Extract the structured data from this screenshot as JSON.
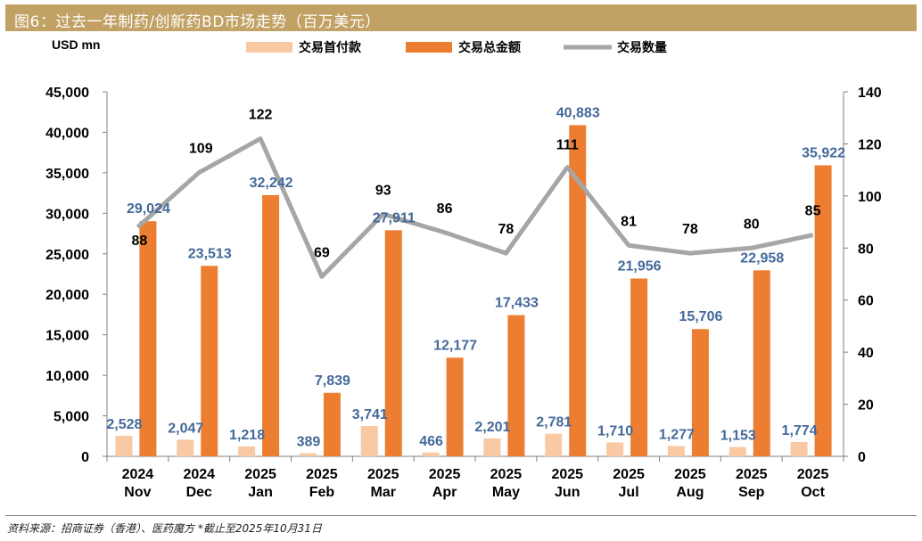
{
  "header": {
    "title": "图6：过去一年制药/创新药BD市场走势（百万美元）"
  },
  "footer": {
    "source": "资料来源：招商证券（香港）、医药魔方 *截止至2025年10月31日"
  },
  "colors": {
    "title_bg": "#C2A165",
    "upfront_bar": "#F8C9A3",
    "total_bar": "#ED7D31",
    "count_line": "#A6A6A6",
    "value_label": "#44699A",
    "count_label": "#000000"
  },
  "chart_data": {
    "type": "bar",
    "unit_label": "USD mn",
    "categories": [
      [
        "2024",
        "Nov"
      ],
      [
        "2024",
        "Dec"
      ],
      [
        "2025",
        "Jan"
      ],
      [
        "2025",
        "Feb"
      ],
      [
        "2025",
        "Mar"
      ],
      [
        "2025",
        "Apr"
      ],
      [
        "2025",
        "May"
      ],
      [
        "2025",
        "Jun"
      ],
      [
        "2025",
        "Jul"
      ],
      [
        "2025",
        "Aug"
      ],
      [
        "2025",
        "Sep"
      ],
      [
        "2025",
        "Oct"
      ]
    ],
    "series": [
      {
        "name": "交易首付款",
        "type": "bar",
        "axis": "left",
        "values": [
          2528,
          2047,
          1218,
          389,
          3741,
          466,
          2201,
          2781,
          1710,
          1277,
          1153,
          1774
        ],
        "labels": [
          "2,528",
          "2,047",
          "1,218",
          "389",
          "3,741",
          "466",
          "2,201",
          "2,781",
          "1,710",
          "1,277",
          "1,153",
          "1,774"
        ]
      },
      {
        "name": "交易总金额",
        "type": "bar",
        "axis": "left",
        "values": [
          29024,
          23513,
          32242,
          7839,
          27911,
          12177,
          17433,
          40883,
          21956,
          15706,
          22958,
          35922
        ],
        "labels": [
          "29,024",
          "23,513",
          "32,242",
          "7,839",
          "27,911",
          "12,177",
          "17,433",
          "40,883",
          "21,956",
          "15,706",
          "22,958",
          "35,922"
        ]
      },
      {
        "name": "交易数量",
        "type": "line",
        "axis": "right",
        "values": [
          88,
          109,
          122,
          69,
          93,
          86,
          78,
          111,
          81,
          78,
          80,
          85
        ],
        "labels": [
          "88",
          "109",
          "122",
          "69",
          "93",
          "86",
          "78",
          "111",
          "81",
          "78",
          "80",
          "85"
        ]
      }
    ],
    "y_left": {
      "min": 0,
      "max": 45000,
      "step": 5000,
      "ticks": [
        "0",
        "5,000",
        "10,000",
        "15,000",
        "20,000",
        "25,000",
        "30,000",
        "35,000",
        "40,000",
        "45,000"
      ]
    },
    "y_right": {
      "min": 0,
      "max": 140,
      "step": 20,
      "ticks": [
        "0",
        "20",
        "40",
        "60",
        "80",
        "100",
        "120",
        "140"
      ]
    },
    "legend_position": "top",
    "grid": false
  }
}
